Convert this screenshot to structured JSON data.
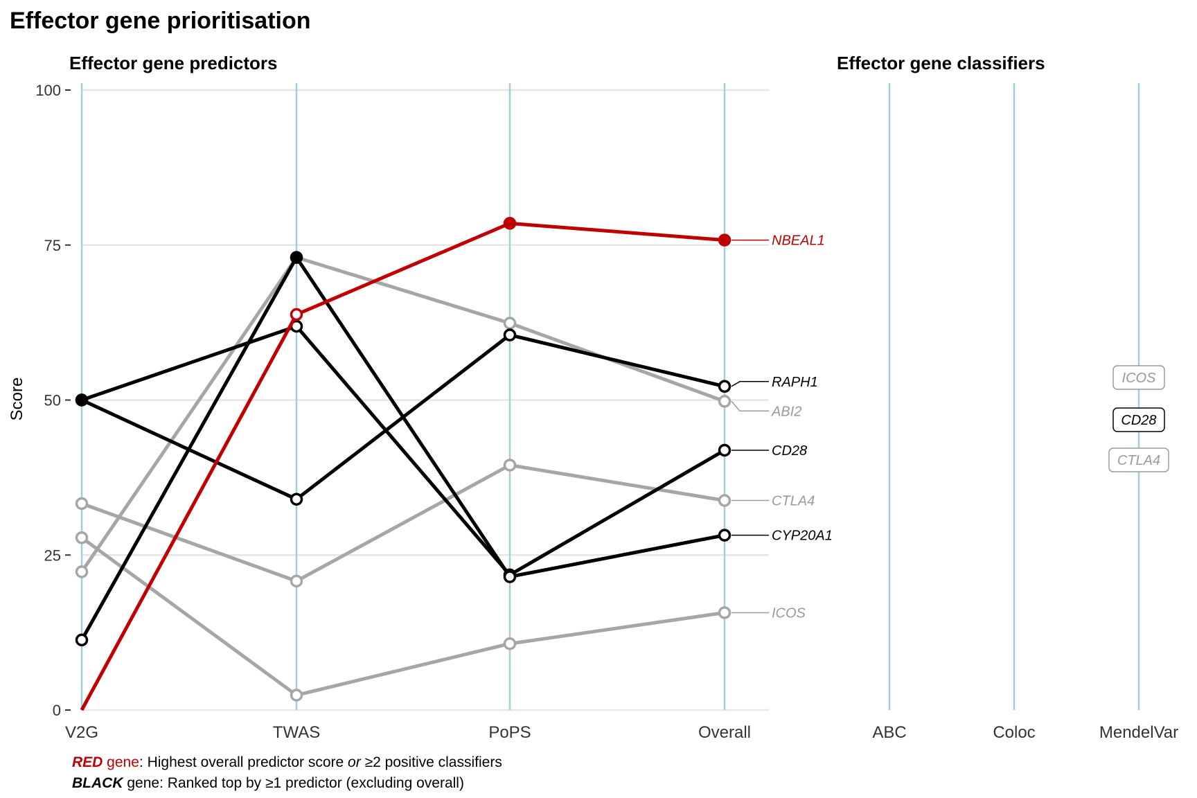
{
  "title": "Effector gene prioritisation",
  "chart_data": [
    {
      "type": "line",
      "title": "Effector gene predictors",
      "ylabel": "Score",
      "categories": [
        "V2G",
        "TWAS",
        "PoPS",
        "Overall"
      ],
      "ylim": [
        0,
        100
      ],
      "yticks": [
        0,
        25,
        50,
        75,
        100
      ],
      "grid": true,
      "series": [
        {
          "name": "NBEAL1",
          "class": "red",
          "values": [
            0,
            63.8,
            78.5,
            75.8
          ],
          "filled": [
            false,
            false,
            true,
            true
          ]
        },
        {
          "name": "RAPH1",
          "class": "black",
          "values": [
            50,
            34,
            60.5,
            52.2
          ],
          "filled": [
            true,
            false,
            false,
            false
          ]
        },
        {
          "name": "ABI2",
          "class": "grey",
          "values": [
            22.3,
            73,
            62.4,
            49.8
          ],
          "filled": [
            false,
            false,
            false,
            false
          ]
        },
        {
          "name": "CD28",
          "class": "black",
          "values": [
            50,
            61.9,
            21.8,
            41.9
          ],
          "filled": [
            true,
            false,
            false,
            false
          ]
        },
        {
          "name": "CTLA4",
          "class": "grey",
          "values": [
            33.3,
            20.8,
            39.5,
            33.8
          ],
          "filled": [
            false,
            false,
            false,
            false
          ]
        },
        {
          "name": "CYP20A1",
          "class": "black",
          "values": [
            11.3,
            73,
            21.5,
            28.2
          ],
          "filled": [
            false,
            true,
            false,
            false
          ]
        },
        {
          "name": "ICOS",
          "class": "grey",
          "values": [
            27.8,
            2.4,
            10.7,
            15.7
          ],
          "filled": [
            false,
            false,
            false,
            false
          ]
        }
      ]
    },
    {
      "type": "table",
      "title": "Effector gene classifiers",
      "categories": [
        "ABC",
        "Coloc",
        "MendelVar"
      ],
      "labels": [
        {
          "classifier": "MendelVar",
          "gene": "ICOS",
          "class": "grey"
        },
        {
          "classifier": "MendelVar",
          "gene": "CD28",
          "class": "black"
        },
        {
          "classifier": "MendelVar",
          "gene": "CTLA4",
          "class": "grey"
        }
      ]
    }
  ],
  "colors": {
    "red": "#c00000",
    "black": "#000000",
    "grey": "#a6a6a6",
    "axis_line": "#9fd0e0",
    "grid": "#e6e6e6"
  },
  "footnote": {
    "line1": {
      "bold": "RED",
      "colored": " gene",
      "text1": ": Highest overall predictor score ",
      "italic": "or",
      "text2": " ≥2 positive classifiers"
    },
    "line2": {
      "bold": "BLACK",
      "text": " gene: Ranked top by ≥1 predictor (excluding overall)"
    }
  }
}
